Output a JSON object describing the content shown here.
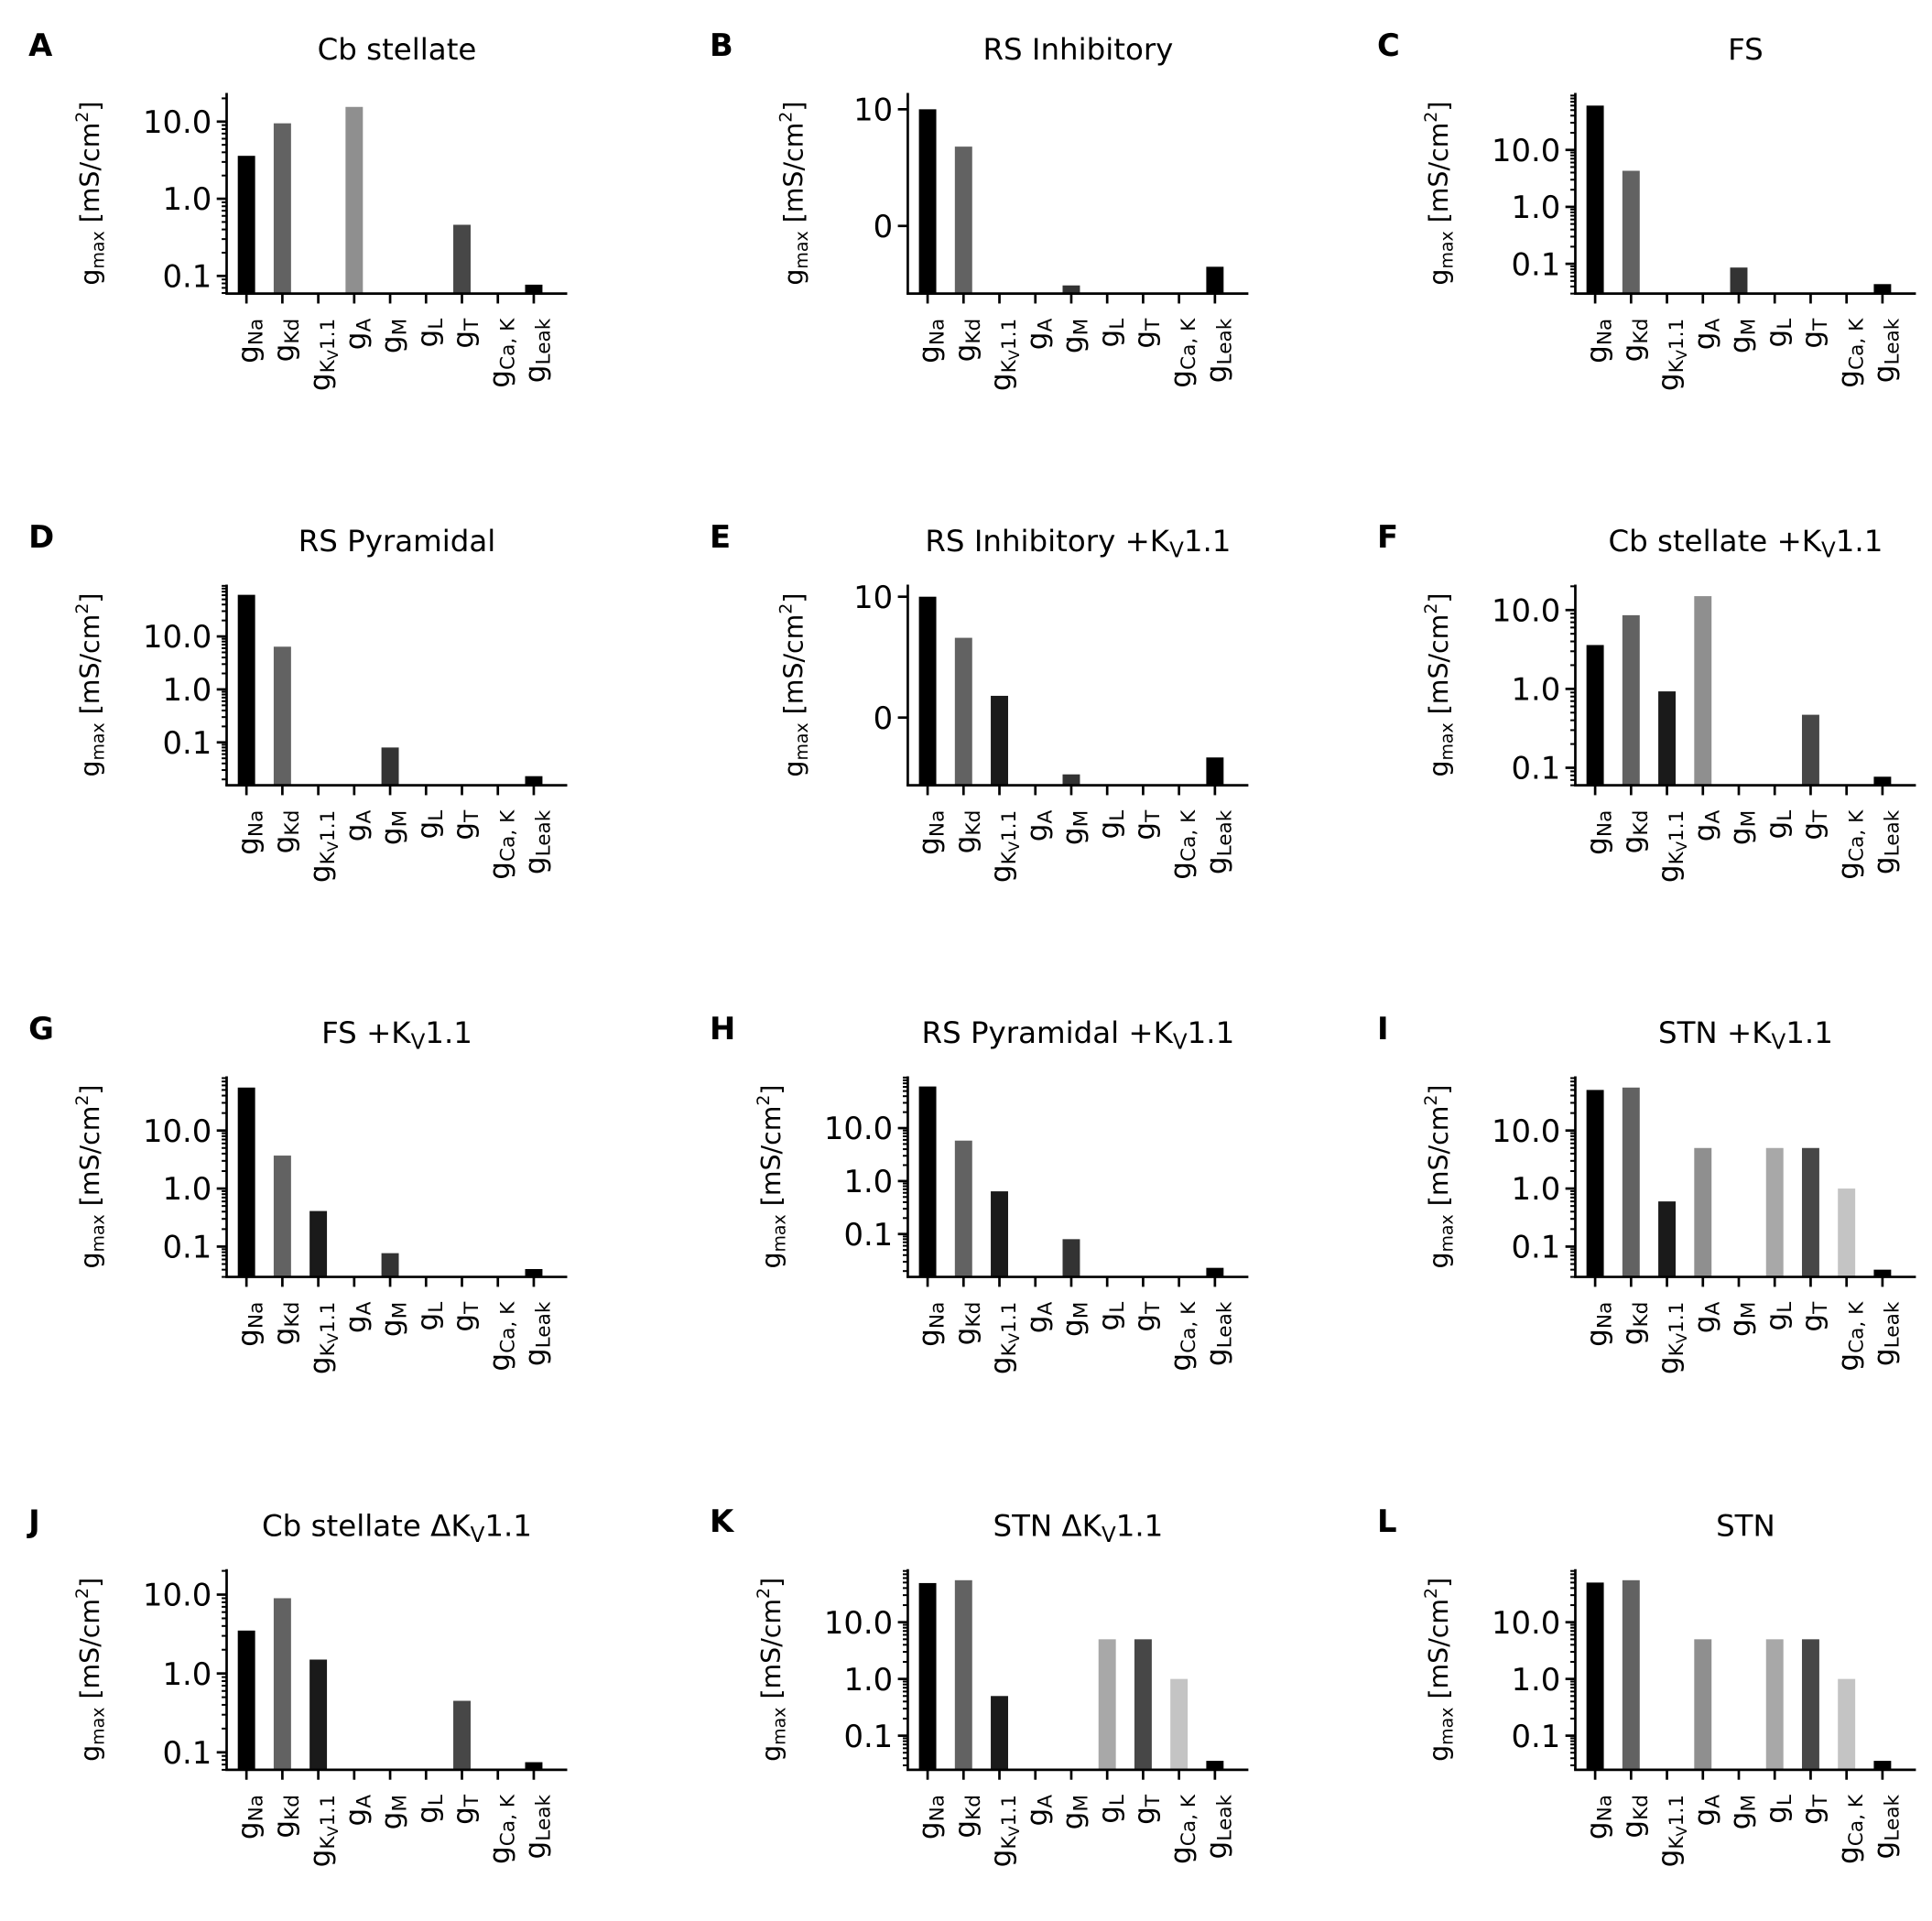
{
  "chart_data": {
    "type": "bar",
    "categories": [
      {
        "base": "g",
        "sub": "Na"
      },
      {
        "base": "g",
        "sub": "Kd"
      },
      {
        "base": "g",
        "sub": "K",
        "subsub": "V",
        "sub2": "1.1"
      },
      {
        "base": "g",
        "sub": "A"
      },
      {
        "base": "g",
        "sub": "M"
      },
      {
        "base": "g",
        "sub": "L"
      },
      {
        "base": "g",
        "sub": "T"
      },
      {
        "base": "g",
        "sub": "Ca, K"
      },
      {
        "base": "g",
        "sub": "Leak"
      }
    ],
    "bar_colors": [
      "#000000",
      "#626262",
      "#1a1a1a",
      "#8f8f8f",
      "#333333",
      "#a8a8a8",
      "#474747",
      "#c4c4c4",
      "#000000"
    ],
    "ylabel": {
      "base": "g",
      "sub": "max",
      "rest": " [mS/cm",
      "sup": "2",
      "end": "]"
    },
    "panels": [
      {
        "letter": "A",
        "title": [
          {
            "t": "Cb stellate"
          }
        ],
        "yscale": "log",
        "ylim": [
          0.059,
          23.5
        ],
        "yticks": [
          {
            "v": 10,
            "label": "10.0"
          },
          {
            "v": 1,
            "label": "1.0"
          },
          {
            "v": 0.1,
            "label": "0.1"
          }
        ],
        "values": [
          3.6,
          9.5,
          null,
          15.5,
          null,
          null,
          0.46,
          null,
          0.077
        ]
      },
      {
        "letter": "B",
        "title": [
          {
            "t": "RS Inhibitory"
          }
        ],
        "yscale": "symlog",
        "ylim": [
          -5.8,
          11.4
        ],
        "yticks": [
          {
            "v": 10,
            "label": "10"
          },
          {
            "v": 0,
            "label": "0"
          }
        ],
        "values": [
          10,
          6.8,
          null,
          null,
          -5.1,
          null,
          null,
          null,
          -3.5
        ]
      },
      {
        "letter": "C",
        "title": [
          {
            "t": "FS"
          }
        ],
        "yscale": "log",
        "ylim": [
          0.03,
          100
        ],
        "yticks": [
          {
            "v": 10,
            "label": "10.0"
          },
          {
            "v": 1,
            "label": "1.0"
          },
          {
            "v": 0.1,
            "label": "0.1"
          }
        ],
        "values": [
          60,
          4.3,
          null,
          null,
          0.086,
          null,
          null,
          null,
          0.044
        ]
      },
      {
        "letter": "D",
        "title": [
          {
            "t": "RS Pyramidal"
          }
        ],
        "yscale": "log",
        "ylim": [
          0.0155,
          95
        ],
        "yticks": [
          {
            "v": 10,
            "label": "10.0"
          },
          {
            "v": 1,
            "label": "1.0"
          },
          {
            "v": 0.1,
            "label": "0.1"
          }
        ],
        "values": [
          61,
          6.4,
          null,
          null,
          0.08,
          null,
          null,
          null,
          0.023
        ]
      },
      {
        "letter": "E",
        "title": [
          {
            "t": "RS Inhibitory +K"
          },
          {
            "t": "V",
            "sub": true
          },
          {
            "t": "1.1"
          }
        ],
        "yscale": "symlog",
        "ylim": [
          -5.6,
          11
        ],
        "yticks": [
          {
            "v": 10,
            "label": "10"
          },
          {
            "v": 0,
            "label": "0"
          }
        ],
        "values": [
          10,
          6.6,
          1.8,
          null,
          -4.7,
          null,
          null,
          null,
          -3.3
        ]
      },
      {
        "letter": "F",
        "title": [
          {
            "t": "Cb stellate +K"
          },
          {
            "t": "V",
            "sub": true
          },
          {
            "t": "1.1"
          }
        ],
        "yscale": "log",
        "ylim": [
          0.06,
          21
        ],
        "yticks": [
          {
            "v": 10,
            "label": "10.0"
          },
          {
            "v": 1,
            "label": "1.0"
          },
          {
            "v": 0.1,
            "label": "0.1"
          }
        ],
        "values": [
          3.6,
          8.6,
          0.93,
          15,
          null,
          null,
          0.47,
          null,
          0.077
        ]
      },
      {
        "letter": "G",
        "title": [
          {
            "t": "FS +K"
          },
          {
            "t": "V",
            "sub": true
          },
          {
            "t": "1.1"
          }
        ],
        "yscale": "log",
        "ylim": [
          0.03,
          86
        ],
        "yticks": [
          {
            "v": 10,
            "label": "10.0"
          },
          {
            "v": 1,
            "label": "1.0"
          },
          {
            "v": 0.1,
            "label": "0.1"
          }
        ],
        "values": [
          55,
          3.7,
          0.41,
          null,
          0.077,
          null,
          null,
          null,
          0.041
        ]
      },
      {
        "letter": "H",
        "title": [
          {
            "t": "RS Pyramidal +K"
          },
          {
            "t": "V",
            "sub": true
          },
          {
            "t": "1.1"
          }
        ],
        "yscale": "log",
        "ylim": [
          0.0155,
          95
        ],
        "yticks": [
          {
            "v": 10,
            "label": "10.0"
          },
          {
            "v": 1,
            "label": "1.0"
          },
          {
            "v": 0.1,
            "label": "0.1"
          }
        ],
        "values": [
          61,
          5.8,
          0.64,
          null,
          0.08,
          null,
          null,
          null,
          0.023
        ]
      },
      {
        "letter": "I",
        "title": [
          {
            "t": "STN +K"
          },
          {
            "t": "V",
            "sub": true
          },
          {
            "t": "1.1"
          }
        ],
        "yscale": "log",
        "ylim": [
          0.03,
          86
        ],
        "yticks": [
          {
            "v": 10,
            "label": "10.0"
          },
          {
            "v": 1,
            "label": "1.0"
          },
          {
            "v": 0.1,
            "label": "0.1"
          }
        ],
        "values": [
          50,
          55,
          0.6,
          5,
          null,
          5,
          5,
          1.0,
          0.04
        ]
      },
      {
        "letter": "J",
        "title": [
          {
            "t": "Cb stellate ΔK"
          },
          {
            "t": "V",
            "sub": true
          },
          {
            "t": "1.1"
          }
        ],
        "yscale": "log",
        "ylim": [
          0.06,
          21
        ],
        "yticks": [
          {
            "v": 10,
            "label": "10.0"
          },
          {
            "v": 1,
            "label": "1.0"
          },
          {
            "v": 0.1,
            "label": "0.1"
          }
        ],
        "values": [
          3.5,
          9,
          1.5,
          null,
          null,
          null,
          0.45,
          null,
          0.075
        ]
      },
      {
        "letter": "K",
        "title": [
          {
            "t": "STN ΔK"
          },
          {
            "t": "V",
            "sub": true
          },
          {
            "t": "1.1"
          }
        ],
        "yscale": "log",
        "ylim": [
          0.025,
          86
        ],
        "yticks": [
          {
            "v": 10,
            "label": "10.0"
          },
          {
            "v": 1,
            "label": "1.0"
          },
          {
            "v": 0.1,
            "label": "0.1"
          }
        ],
        "values": [
          49,
          55,
          0.5,
          null,
          null,
          5,
          5,
          1.0,
          0.036
        ]
      },
      {
        "letter": "L",
        "title": [
          {
            "t": "STN"
          }
        ],
        "yscale": "log",
        "ylim": [
          0.025,
          86
        ],
        "yticks": [
          {
            "v": 10,
            "label": "10.0"
          },
          {
            "v": 1,
            "label": "1.0"
          },
          {
            "v": 0.1,
            "label": "0.1"
          }
        ],
        "values": [
          50,
          55,
          null,
          5,
          null,
          5,
          5,
          1.0,
          0.036
        ]
      }
    ]
  }
}
